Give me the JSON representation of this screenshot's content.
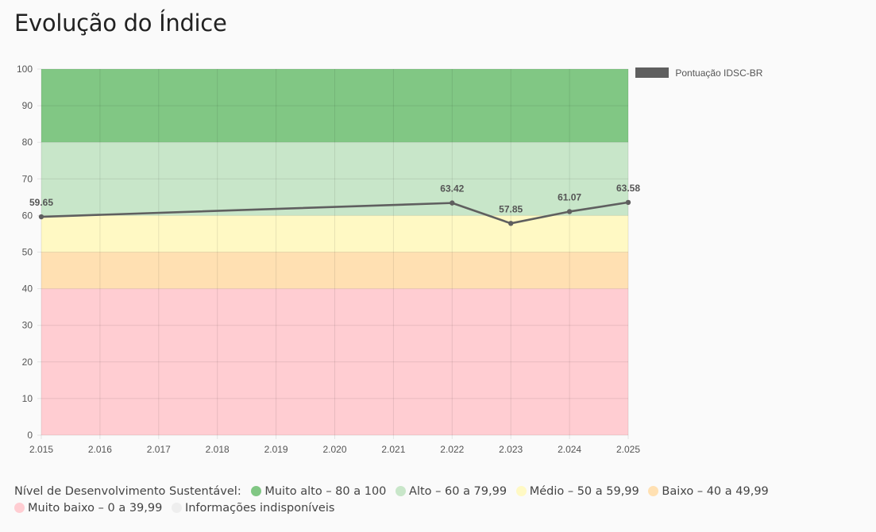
{
  "page": {
    "title": "Evolução do Índice"
  },
  "chart_data": {
    "type": "line",
    "title": "Evolução do Índice",
    "xlabel": "",
    "ylabel": "",
    "x": [
      "2.015",
      "2.016",
      "2.017",
      "2.018",
      "2.019",
      "2.020",
      "2.021",
      "2.022",
      "2.023",
      "2.024",
      "2.025"
    ],
    "ylim": [
      0,
      100
    ],
    "yticks": [
      0,
      10,
      20,
      30,
      40,
      50,
      60,
      70,
      80,
      90,
      100
    ],
    "grid": true,
    "legend_position": "top-right",
    "series": [
      {
        "name": "Pontuação IDSC-BR",
        "color": "#5f5f5f",
        "points": [
          {
            "x": "2.015",
            "y": 59.65,
            "label": "59.65"
          },
          {
            "x": "2.022",
            "y": 63.42,
            "label": "63.42"
          },
          {
            "x": "2.023",
            "y": 57.85,
            "label": "57.85"
          },
          {
            "x": "2.024",
            "y": 61.07,
            "label": "61.07"
          },
          {
            "x": "2.025",
            "y": 63.58,
            "label": "63.58"
          }
        ]
      }
    ],
    "bands": [
      {
        "from": 80,
        "to": 100,
        "color": "#81c784"
      },
      {
        "from": 60,
        "to": 80,
        "color": "#c8e6c9"
      },
      {
        "from": 50,
        "to": 60,
        "color": "#fff9c4"
      },
      {
        "from": 40,
        "to": 50,
        "color": "#ffe0b2"
      },
      {
        "from": 0,
        "to": 40,
        "color": "#ffcdd2"
      }
    ]
  },
  "legend": {
    "label": "Nível de Desenvolvimento Sustentável:",
    "items": [
      {
        "label": "Muito alto – 80 a 100",
        "color": "#81c784"
      },
      {
        "label": "Alto – 60 a 79,99",
        "color": "#c8e6c9"
      },
      {
        "label": "Médio – 50 a 59,99",
        "color": "#fff9c4"
      },
      {
        "label": "Baixo – 40 a 49,99",
        "color": "#ffe0b2"
      },
      {
        "label": "Muito baixo – 0 a 39,99",
        "color": "#ffcdd2"
      },
      {
        "label": "Informações indisponíveis",
        "color": "#eeeeee"
      }
    ]
  }
}
